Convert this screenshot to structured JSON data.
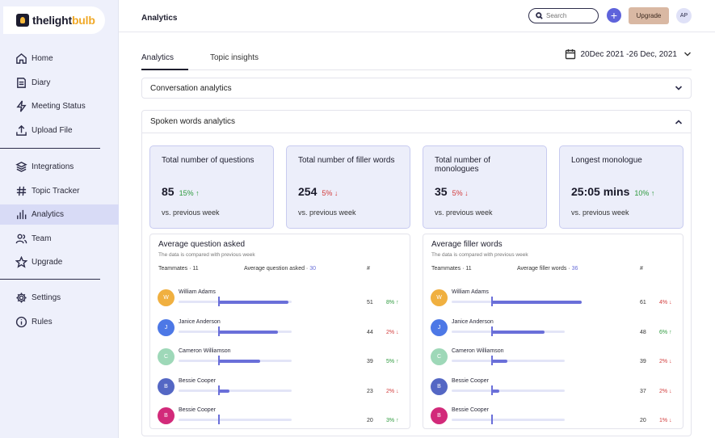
{
  "app": {
    "logo_prefix": "thelight",
    "logo_suffix": "bulb",
    "page_title": "Analytics"
  },
  "colors": {
    "accent": "#5e63db",
    "bar": "#6a6fd9",
    "up": "#2e9a3e",
    "down": "#d23b3b",
    "sidebar_bg": "#eef0fb",
    "card_bg": "#eceefa"
  },
  "sidebar": {
    "items": [
      {
        "label": "Home",
        "icon": "home-icon"
      },
      {
        "label": "Diary",
        "icon": "diary-icon"
      },
      {
        "label": "Meeting Status",
        "icon": "lightning-icon"
      },
      {
        "label": "Upload File",
        "icon": "upload-icon"
      },
      {
        "label": "Integrations",
        "icon": "layers-icon"
      },
      {
        "label": "Topic Tracker",
        "icon": "hashtag-icon"
      },
      {
        "label": "Analytics",
        "icon": "bar-chart-icon",
        "active": true
      },
      {
        "label": "Team",
        "icon": "team-icon"
      },
      {
        "label": "Upgrade",
        "icon": "star-icon"
      },
      {
        "label": "Settings",
        "icon": "gear-icon"
      },
      {
        "label": "Rules",
        "icon": "info-icon"
      }
    ]
  },
  "topbar": {
    "search_placeholder": "Search",
    "plus_label": "+",
    "upgrade_label": "Upgrade",
    "avatar_initials": "AP"
  },
  "tabs": {
    "items": [
      "Analytics",
      "Topic insights"
    ],
    "date_range": "20Dec 2021 -26 Dec, 2021"
  },
  "accordions": {
    "conversation": "Conversation analytics",
    "spoken": "Spoken words analytics"
  },
  "stats": [
    {
      "title": "Total number of questions",
      "value": "85",
      "change": "15%",
      "direction": "up",
      "foot": "vs. previous week"
    },
    {
      "title": "Total number of filler words",
      "value": "254",
      "change": "5%",
      "direction": "down",
      "foot": "vs. previous week"
    },
    {
      "title": "Total number of monologues",
      "value": "35",
      "change": "5%",
      "direction": "down",
      "foot": "vs. previous week"
    },
    {
      "title": "Longest monologue",
      "value": "25:05 mins",
      "change": "10%",
      "direction": "up",
      "foot": "vs. previous week"
    }
  ],
  "panels": [
    {
      "title": "Average question asked",
      "subtitle": "The data is compared with previous week",
      "teammates_label": "Teammates · 11",
      "avg_label": "Average question asked · ",
      "avg_value": "30",
      "hash": "#",
      "rows": [
        {
          "name": "William Adams",
          "initial": "W",
          "color": "#f0b040",
          "value": "51",
          "change": "8%",
          "direction": "up",
          "fill": 0.62,
          "marker": 0.35
        },
        {
          "name": "Janice Anderson",
          "initial": "J",
          "color": "#4d78e6",
          "value": "44",
          "change": "2%",
          "direction": "down",
          "fill": 0.53,
          "marker": 0.35
        },
        {
          "name": "Cameron Williamson",
          "initial": "C",
          "color": "#9ed8b8",
          "value": "39",
          "change": "5%",
          "direction": "up",
          "fill": 0.37,
          "marker": 0.35
        },
        {
          "name": "Bessie Cooper",
          "initial": "B",
          "color": "#5467c4",
          "value": "23",
          "change": "2%",
          "direction": "down",
          "fill": 0.1,
          "marker": 0.35
        },
        {
          "name": "Bessie Cooper",
          "initial": "B",
          "color": "#d22a7a",
          "value": "20",
          "change": "3%",
          "direction": "up",
          "fill": 0.0,
          "marker": 0.35
        }
      ]
    },
    {
      "title": "Average filler words",
      "subtitle": "The data is compared with previous week",
      "teammates_label": "Teammates · 11",
      "avg_label": "Average filler words · ",
      "avg_value": "36",
      "hash": "#",
      "rows": [
        {
          "name": "William Adams",
          "initial": "W",
          "color": "#f0b040",
          "value": "61",
          "change": "4%",
          "direction": "down",
          "fill": 0.8,
          "marker": 0.35
        },
        {
          "name": "Janice Anderson",
          "initial": "J",
          "color": "#4d78e6",
          "value": "48",
          "change": "6%",
          "direction": "up",
          "fill": 0.47,
          "marker": 0.35
        },
        {
          "name": "Cameron Williamson",
          "initial": "C",
          "color": "#9ed8b8",
          "value": "39",
          "change": "2%",
          "direction": "down",
          "fill": 0.14,
          "marker": 0.35
        },
        {
          "name": "Bessie Cooper",
          "initial": "B",
          "color": "#5467c4",
          "value": "37",
          "change": "2%",
          "direction": "down",
          "fill": 0.07,
          "marker": 0.35
        },
        {
          "name": "Bessie Cooper",
          "initial": "B",
          "color": "#d22a7a",
          "value": "20",
          "change": "1%",
          "direction": "down",
          "fill": 0.0,
          "marker": 0.35
        }
      ]
    }
  ]
}
